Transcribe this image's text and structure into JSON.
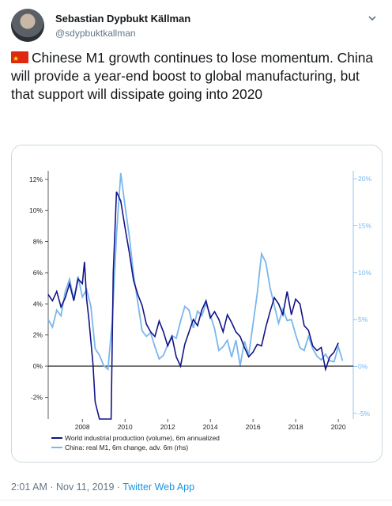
{
  "tweet": {
    "display_name": "Sebastian Dypbukt Källman",
    "handle": "@sdypbuktkallman",
    "flag_icon": "china-flag-icon",
    "text": "Chinese M1 growth continues to lose momentum. China will provide a year-end boost to global manufacturing, but that support will dissipate going into 2020",
    "timestamp": "2:01 AM · Nov 11, 2019 · ",
    "source_app": "Twitter Web App",
    "colors": {
      "link": "#1b95e0",
      "muted": "#657786",
      "text": "#14171a"
    }
  },
  "chart_data": {
    "type": "line",
    "title": "",
    "x_ticks": [
      "2008",
      "2010",
      "2012",
      "2014",
      "2016",
      "2018",
      "2020"
    ],
    "xlim": [
      2006.4,
      2020.7
    ],
    "y_left": {
      "ticks": [
        "12%",
        "10%",
        "8%",
        "6%",
        "4%",
        "2%",
        "0%",
        "-2%"
      ],
      "ylim": [
        -3.4,
        12.4
      ]
    },
    "y_right": {
      "ticks": [
        "20%",
        "15%",
        "10%",
        "5%",
        "0%",
        "-5%"
      ],
      "ylim": [
        -5.6,
        20.6
      ]
    },
    "grid": false,
    "zero_line": true,
    "series": [
      {
        "name": "World industrial production (volume), 6m annualized",
        "axis": "left",
        "color": "#131387",
        "x": [
          2006.4,
          2006.6,
          2006.8,
          2007.0,
          2007.2,
          2007.4,
          2007.6,
          2007.8,
          2008.0,
          2008.1,
          2008.2,
          2008.3,
          2008.5,
          2008.6,
          2008.8,
          2009.0,
          2009.2,
          2009.35,
          2009.45,
          2009.6,
          2009.8,
          2010.0,
          2010.2,
          2010.4,
          2010.6,
          2010.8,
          2011.0,
          2011.2,
          2011.4,
          2011.6,
          2011.8,
          2012.0,
          2012.2,
          2012.4,
          2012.6,
          2012.8,
          2013.0,
          2013.2,
          2013.4,
          2013.6,
          2013.8,
          2014.0,
          2014.2,
          2014.4,
          2014.6,
          2014.8,
          2015.0,
          2015.2,
          2015.4,
          2015.6,
          2015.8,
          2016.0,
          2016.2,
          2016.4,
          2016.6,
          2016.8,
          2017.0,
          2017.2,
          2017.4,
          2017.6,
          2017.8,
          2018.0,
          2018.2,
          2018.4,
          2018.6,
          2018.8,
          2019.0,
          2019.2,
          2019.4,
          2019.6,
          2019.8,
          2020.0
        ],
        "values": [
          4.6,
          4.2,
          4.8,
          3.8,
          4.4,
          5.3,
          4.2,
          5.6,
          5.3,
          6.7,
          4.3,
          3.1,
          0.1,
          -2.3,
          -3.4,
          -3.4,
          -3.4,
          -3.4,
          6.0,
          11.2,
          10.6,
          8.9,
          7.3,
          5.5,
          4.6,
          3.9,
          2.7,
          2.2,
          1.9,
          2.9,
          2.2,
          1.3,
          1.9,
          0.6,
          0.0,
          1.4,
          2.2,
          3.0,
          2.6,
          3.6,
          4.2,
          3.1,
          3.5,
          3.0,
          2.2,
          3.3,
          2.8,
          2.2,
          1.9,
          1.2,
          0.6,
          0.9,
          1.4,
          1.3,
          2.5,
          3.5,
          4.4,
          4.0,
          3.3,
          4.8,
          3.3,
          4.3,
          4.0,
          2.6,
          2.3,
          1.3,
          1.0,
          1.2,
          -0.2,
          0.6,
          0.9,
          1.5
        ]
      },
      {
        "name": "China: real M1, 6m change, adv. 6m (rhs)",
        "axis": "right",
        "color": "#7ab6ee",
        "x": [
          2006.4,
          2006.6,
          2006.8,
          2007.0,
          2007.2,
          2007.4,
          2007.6,
          2007.8,
          2008.0,
          2008.2,
          2008.4,
          2008.6,
          2008.8,
          2009.0,
          2009.2,
          2009.4,
          2009.6,
          2009.8,
          2010.0,
          2010.2,
          2010.4,
          2010.6,
          2010.8,
          2011.0,
          2011.2,
          2011.4,
          2011.6,
          2011.8,
          2012.0,
          2012.2,
          2012.4,
          2012.6,
          2012.8,
          2013.0,
          2013.2,
          2013.4,
          2013.6,
          2013.8,
          2014.0,
          2014.2,
          2014.4,
          2014.6,
          2014.8,
          2015.0,
          2015.2,
          2015.4,
          2015.6,
          2015.8,
          2016.0,
          2016.2,
          2016.4,
          2016.6,
          2016.8,
          2017.0,
          2017.2,
          2017.4,
          2017.6,
          2017.8,
          2018.0,
          2018.2,
          2018.4,
          2018.6,
          2018.8,
          2019.0,
          2019.2,
          2019.4,
          2019.6,
          2019.8,
          2020.0,
          2020.2
        ],
        "values": [
          5.0,
          4.2,
          6.0,
          5.4,
          8.0,
          9.3,
          7.2,
          9.6,
          7.4,
          8.2,
          6.4,
          1.9,
          1.2,
          0.1,
          -0.3,
          4.8,
          14.0,
          20.6,
          17.1,
          13.9,
          9.8,
          6.8,
          3.8,
          3.2,
          3.6,
          2.1,
          0.8,
          1.2,
          2.3,
          3.3,
          3.0,
          4.8,
          6.4,
          6.0,
          4.1,
          5.9,
          5.4,
          6.7,
          5.5,
          4.0,
          1.7,
          2.1,
          2.8,
          1.0,
          2.8,
          0.1,
          2.7,
          1.2,
          4.5,
          7.8,
          12.0,
          11.1,
          8.4,
          6.5,
          4.6,
          6.1,
          4.9,
          5.0,
          3.4,
          2.0,
          1.7,
          3.2,
          1.9,
          1.1,
          0.7,
          1.3,
          0.6,
          0.5,
          2.1,
          0.6
        ]
      }
    ]
  }
}
